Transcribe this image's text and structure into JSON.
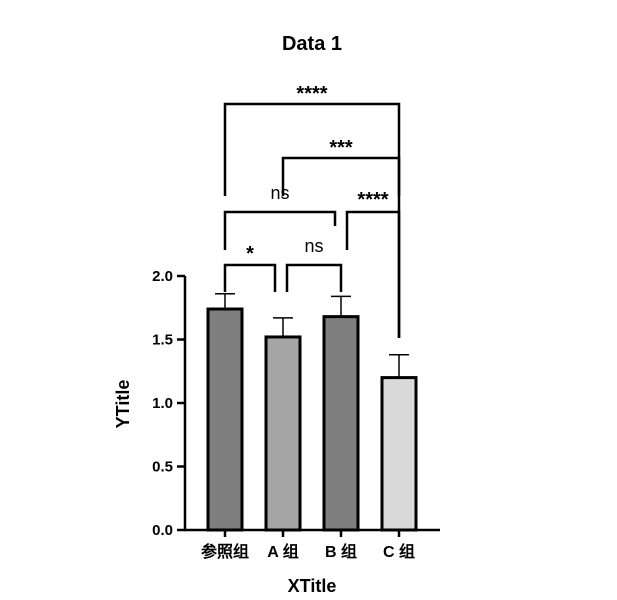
{
  "chart_data": {
    "type": "bar",
    "title": "Data 1",
    "xlabel": "XTitle",
    "ylabel": "YTitle",
    "ylim": [
      0,
      2.0
    ],
    "yticks": [
      "0.0",
      "0.5",
      "1.0",
      "1.5",
      "2.0"
    ],
    "categories": [
      "参照组",
      "A 组",
      "B 组",
      "C 组"
    ],
    "values": [
      1.74,
      1.52,
      1.68,
      1.2
    ],
    "errors": [
      0.12,
      0.15,
      0.16,
      0.18
    ],
    "bar_colors": [
      "#7f7f7f",
      "#a6a6a6",
      "#7f7f7f",
      "#d9d9d9"
    ],
    "comparisons": [
      {
        "from": 0,
        "to": 1,
        "label": "*"
      },
      {
        "from": 1,
        "to": 2,
        "label": "ns"
      },
      {
        "from": 0,
        "to": 2,
        "label": "ns"
      },
      {
        "from": 2,
        "to": 3,
        "label": "****"
      },
      {
        "from": 1,
        "to": 3,
        "label": "***"
      },
      {
        "from": 0,
        "to": 3,
        "label": "****"
      }
    ],
    "grid": false
  }
}
